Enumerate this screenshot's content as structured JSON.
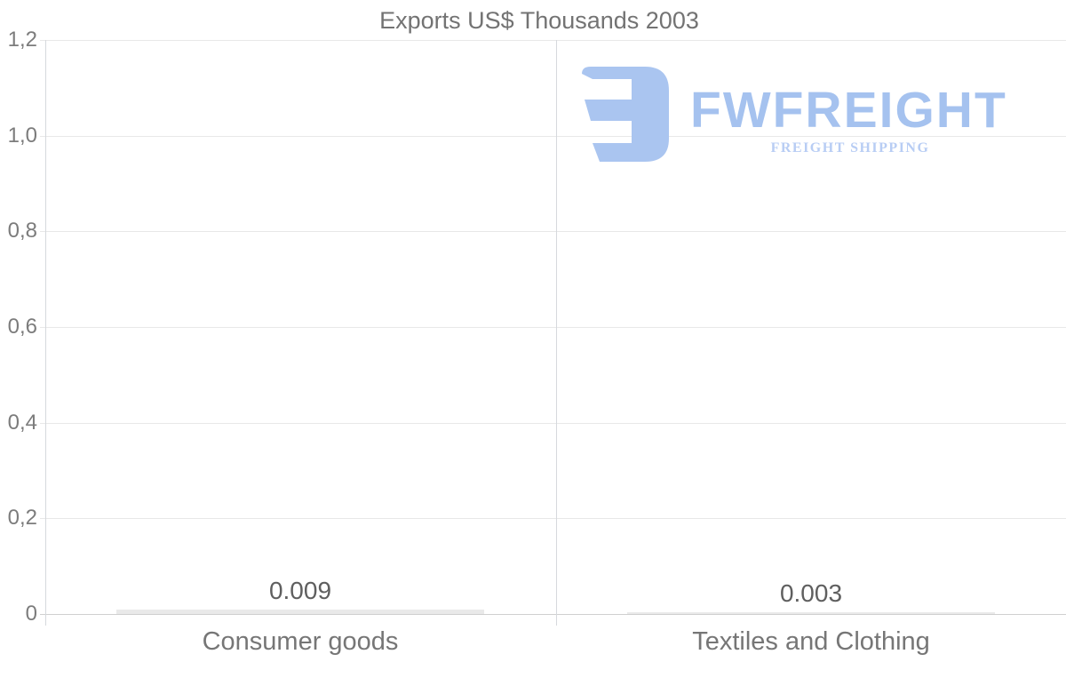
{
  "chart_data": {
    "type": "bar",
    "title": "Exports US$ Thousands 2003",
    "categories": [
      "Consumer goods",
      "Textiles and Clothing"
    ],
    "values": [
      0.009,
      0.003
    ],
    "value_labels": [
      "0.009",
      "0.003"
    ],
    "ytick_labels": [
      "1,2",
      "1,0",
      "0,8",
      "0,6",
      "0,4",
      "0,2",
      "0"
    ],
    "ytick_values": [
      1.2,
      1.0,
      0.8,
      0.6,
      0.4,
      0.2,
      0
    ],
    "ylim": [
      0,
      1.2
    ],
    "xlabel": "",
    "ylabel": "",
    "grid": true,
    "legend": "none",
    "colors": {
      "bar": "#e9e9e9",
      "grid": "#e8e8e8",
      "axis_line": "#d6d9dd",
      "zero_line": "#d0d0d0",
      "title_text": "#737373",
      "ytick_text": "#7c7c7c",
      "category_text": "#767676",
      "value_text": "#5f5f5f"
    }
  },
  "watermark": {
    "name": "FWFREIGHT",
    "tagline": "FREIGHT SHIPPING",
    "mark_color": "#aac5f0",
    "name_color": "#a5c2ef",
    "tagline_color": "#b8cdf4"
  }
}
